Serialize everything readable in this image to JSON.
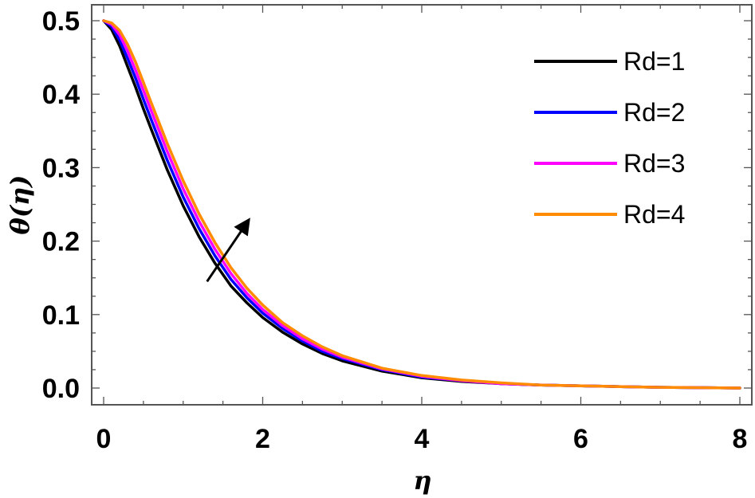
{
  "chart_data": {
    "type": "line",
    "title": "",
    "xlabel": "η",
    "ylabel": "θ(η)",
    "xlim": [
      0,
      8
    ],
    "ylim": [
      0,
      0.5
    ],
    "x_ticks": [
      "0",
      "2",
      "4",
      "6",
      "8"
    ],
    "y_ticks": [
      "0.0",
      "0.1",
      "0.2",
      "0.3",
      "0.4",
      "0.5"
    ],
    "x_minor_step": 0.5,
    "y_minor_step": 0.025,
    "grid": false,
    "legend_position": "top-right",
    "arrow_annotation": {
      "from": [
        1.3,
        0.145
      ],
      "to": [
        1.82,
        0.228
      ],
      "meaning": "increasing Rd"
    },
    "series": [
      {
        "name": "Rd=1",
        "color": "#000000",
        "x": [
          0,
          0.1,
          0.2,
          0.3,
          0.4,
          0.5,
          0.6,
          0.8,
          1.0,
          1.2,
          1.4,
          1.6,
          1.8,
          2.0,
          2.25,
          2.5,
          2.75,
          3.0,
          3.5,
          4.0,
          4.5,
          5.0,
          5.5,
          6.0,
          6.5,
          7.0,
          7.5,
          8.0
        ],
        "y": [
          0.5,
          0.488,
          0.466,
          0.438,
          0.41,
          0.38,
          0.352,
          0.297,
          0.248,
          0.206,
          0.17,
          0.139,
          0.116,
          0.096,
          0.076,
          0.06,
          0.047,
          0.037,
          0.023,
          0.014,
          0.009,
          0.006,
          0.004,
          0.003,
          0.002,
          0.001,
          0.0005,
          0.0
        ]
      },
      {
        "name": "Rd=2",
        "color": "#0000ff",
        "x": [
          0,
          0.1,
          0.2,
          0.3,
          0.4,
          0.5,
          0.6,
          0.8,
          1.0,
          1.2,
          1.4,
          1.6,
          1.8,
          2.0,
          2.25,
          2.5,
          2.75,
          3.0,
          3.5,
          4.0,
          4.5,
          5.0,
          5.5,
          6.0,
          6.5,
          7.0,
          7.5,
          8.0
        ],
        "y": [
          0.5,
          0.492,
          0.474,
          0.449,
          0.422,
          0.393,
          0.365,
          0.31,
          0.26,
          0.217,
          0.18,
          0.148,
          0.123,
          0.102,
          0.081,
          0.064,
          0.05,
          0.04,
          0.025,
          0.015,
          0.01,
          0.006,
          0.004,
          0.003,
          0.002,
          0.001,
          0.0005,
          0.0
        ]
      },
      {
        "name": "Rd=3",
        "color": "#ff00ff",
        "x": [
          0,
          0.1,
          0.2,
          0.3,
          0.4,
          0.5,
          0.6,
          0.8,
          1.0,
          1.2,
          1.4,
          1.6,
          1.8,
          2.0,
          2.25,
          2.5,
          2.75,
          3.0,
          3.5,
          4.0,
          4.5,
          5.0,
          5.5,
          6.0,
          6.5,
          7.0,
          7.5,
          8.0
        ],
        "y": [
          0.5,
          0.495,
          0.481,
          0.459,
          0.433,
          0.405,
          0.377,
          0.322,
          0.271,
          0.227,
          0.189,
          0.156,
          0.129,
          0.107,
          0.085,
          0.067,
          0.053,
          0.042,
          0.026,
          0.016,
          0.01,
          0.006,
          0.004,
          0.003,
          0.002,
          0.001,
          0.0005,
          0.0
        ]
      },
      {
        "name": "Rd=4",
        "color": "#ff8c00",
        "x": [
          0,
          0.1,
          0.2,
          0.3,
          0.4,
          0.5,
          0.6,
          0.8,
          1.0,
          1.2,
          1.4,
          1.6,
          1.8,
          2.0,
          2.25,
          2.5,
          2.75,
          3.0,
          3.5,
          4.0,
          4.5,
          5.0,
          5.5,
          6.0,
          6.5,
          7.0,
          7.5,
          8.0
        ],
        "y": [
          0.5,
          0.497,
          0.487,
          0.468,
          0.444,
          0.416,
          0.388,
          0.333,
          0.282,
          0.237,
          0.198,
          0.164,
          0.136,
          0.113,
          0.089,
          0.071,
          0.056,
          0.044,
          0.027,
          0.017,
          0.011,
          0.007,
          0.004,
          0.003,
          0.002,
          0.001,
          0.0005,
          0.0
        ]
      }
    ]
  }
}
